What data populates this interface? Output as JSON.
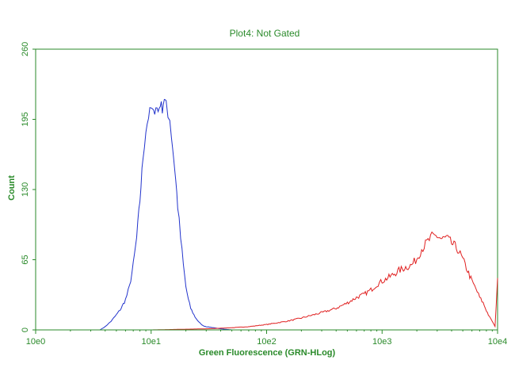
{
  "chart_data": {
    "type": "line",
    "title": "Plot4:  Not Gated",
    "xlabel": "Green Fluorescence (GRN-HLog)",
    "ylabel": "Count",
    "xscale": "log",
    "xlim": [
      1,
      10000
    ],
    "ylim": [
      0,
      260
    ],
    "xticks": [
      "10e0",
      "10e1",
      "10e2",
      "10e3",
      "10e4"
    ],
    "yticks": [
      "0",
      "65",
      "130",
      "195",
      "260"
    ],
    "grid": false,
    "legend": "none",
    "colors": {
      "axis": "#2a8a2a",
      "series_blue": "#2233cc",
      "series_red": "#e02020"
    },
    "series": [
      {
        "color": "#2233cc",
        "x": [
          1,
          2,
          3,
          3.6,
          4,
          4.5,
          5,
          5.5,
          6,
          6.5,
          7,
          7.5,
          8,
          8.5,
          9,
          9.5,
          10,
          10.5,
          11,
          11.5,
          12,
          12.5,
          13,
          13.5,
          14,
          14.5,
          15,
          16,
          17,
          18,
          19,
          20,
          21,
          22,
          24,
          26,
          28,
          30,
          35,
          40,
          50,
          70,
          100,
          300,
          1000,
          10000
        ],
        "y": [
          0,
          0,
          0,
          0,
          3,
          8,
          14,
          20,
          28,
          40,
          60,
          85,
          120,
          160,
          185,
          198,
          205,
          200,
          208,
          202,
          210,
          205,
          215,
          208,
          200,
          195,
          180,
          150,
          115,
          85,
          60,
          40,
          28,
          20,
          12,
          7,
          4,
          3,
          2,
          1,
          0,
          0,
          0,
          0,
          0,
          0
        ]
      },
      {
        "color": "#e02020",
        "x": [
          1,
          10,
          30,
          50,
          70,
          100,
          150,
          200,
          300,
          400,
          500,
          600,
          700,
          800,
          900,
          1000,
          1200,
          1400,
          1600,
          1800,
          2000,
          2200,
          2500,
          2700,
          3000,
          3300,
          3600,
          4000,
          4500,
          5000,
          5500,
          6000,
          6500,
          7000,
          7500,
          8000,
          8500,
          9000,
          9500,
          10000
        ],
        "y": [
          0,
          0,
          1,
          2,
          3,
          5,
          8,
          11,
          16,
          20,
          25,
          30,
          33,
          37,
          42,
          45,
          50,
          55,
          58,
          60,
          66,
          75,
          82,
          86,
          87,
          84,
          85,
          80,
          75,
          65,
          55,
          45,
          38,
          30,
          25,
          18,
          12,
          8,
          3,
          48
        ]
      },
      {
        "color": "#2a8a2a",
        "x": [
          1,
          10000
        ],
        "y": [
          0,
          0
        ]
      }
    ]
  }
}
